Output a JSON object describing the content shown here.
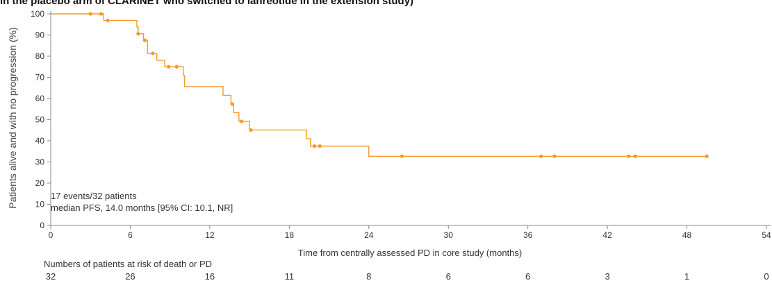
{
  "header": "in the placebo arm of CLARINET who switched to lanreotide in the extension study)",
  "chart_data": {
    "type": "line",
    "title": "",
    "xlabel": "Time from centrally assessed PD in core study (months)",
    "ylabel": "Patients alive and with no progression (%)",
    "xlim": [
      0,
      54
    ],
    "ylim": [
      0,
      100
    ],
    "x_ticks": [
      "0",
      "6",
      "12",
      "18",
      "24",
      "30",
      "36",
      "42",
      "48",
      "54"
    ],
    "y_ticks": [
      "0",
      "10",
      "20",
      "30",
      "40",
      "50",
      "60",
      "70",
      "80",
      "90",
      "100"
    ],
    "grid": false,
    "series": [
      {
        "color": "#f39a2b",
        "steps": [
          [
            0,
            100
          ],
          [
            4.0,
            96.9
          ],
          [
            6.5,
            93.8
          ],
          [
            6.6,
            90.6
          ],
          [
            7.0,
            87.5
          ],
          [
            7.3,
            81.3
          ],
          [
            8.0,
            78.1
          ],
          [
            8.6,
            75.0
          ],
          [
            10.0,
            70.8
          ],
          [
            10.1,
            65.6
          ],
          [
            13.0,
            61.5
          ],
          [
            13.6,
            57.4
          ],
          [
            13.8,
            53.3
          ],
          [
            14.2,
            49.2
          ],
          [
            15.0,
            45.1
          ],
          [
            19.3,
            41.0
          ],
          [
            19.6,
            37.5
          ],
          [
            24.0,
            32.7
          ]
        ],
        "censored": [
          [
            3.0,
            100
          ],
          [
            3.8,
            100
          ],
          [
            4.3,
            96.9
          ],
          [
            6.6,
            90.6
          ],
          [
            7.1,
            87.5
          ],
          [
            7.7,
            81.3
          ],
          [
            8.9,
            75.0
          ],
          [
            9.5,
            75.0
          ],
          [
            13.7,
            57.4
          ],
          [
            14.4,
            49.2
          ],
          [
            15.1,
            45.1
          ],
          [
            19.9,
            37.5
          ],
          [
            20.3,
            37.5
          ],
          [
            26.5,
            32.7
          ],
          [
            37.0,
            32.7
          ],
          [
            38.0,
            32.7
          ],
          [
            43.6,
            32.7
          ],
          [
            44.1,
            32.7
          ],
          [
            49.5,
            32.7
          ]
        ]
      }
    ],
    "annotations": [
      "17 events/32 patients",
      "median PFS, 14.0 months [95% CI: 10.1, NR]"
    ],
    "risk_table": {
      "title": "Numbers of patients at risk of death or PD",
      "values": [
        "32",
        "26",
        "16",
        "11",
        "8",
        "6",
        "6",
        "3",
        "1",
        "0"
      ]
    }
  }
}
